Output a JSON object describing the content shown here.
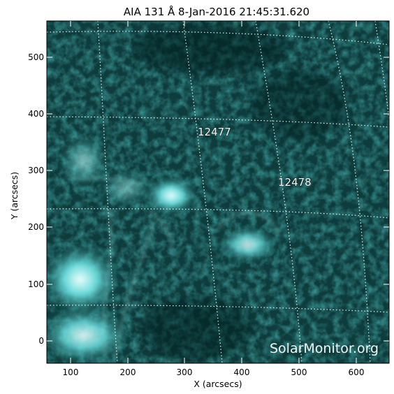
{
  "title": "AIA 131 Å  8-Jan-2016 21:45:31.620",
  "xlabel": "X (arcsecs)",
  "ylabel": "Y (arcsecs)",
  "x_ticks": [
    "100",
    "200",
    "300",
    "400",
    "500",
    "600"
  ],
  "y_ticks": [
    "0",
    "100",
    "200",
    "300",
    "400",
    "500"
  ],
  "regions": [
    "12477",
    "12478"
  ],
  "watermark": "SolarMonitor.org",
  "colors": {
    "background": "#ffffff",
    "image_dark": "#0a2a2a",
    "image_bright": "#c8ffff",
    "grid": "#ffffff"
  }
}
